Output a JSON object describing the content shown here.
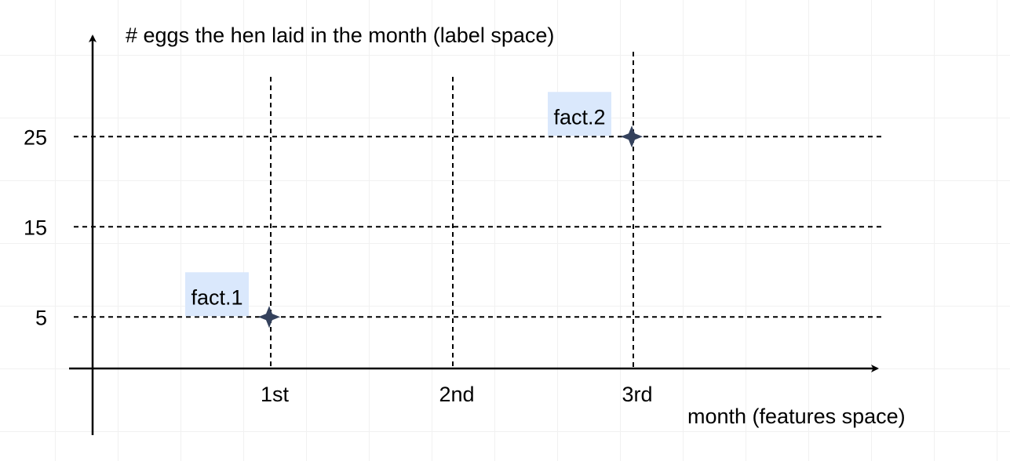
{
  "chart_data": {
    "type": "scatter",
    "ylabel": "# eggs the hen laid in the month (label space)",
    "xlabel": "month (features space)",
    "x_categories": [
      "1st",
      "2nd",
      "3rd"
    ],
    "y_ticks": [
      5,
      15,
      25
    ],
    "grid": "dashed",
    "points": [
      {
        "label": "fact.1",
        "x": "1st",
        "y": 5
      },
      {
        "label": "fact.2",
        "x": "3rd",
        "y": 25
      }
    ],
    "colors": {
      "point": "#34415c",
      "label_highlight": "#dae8fc",
      "axis": "#000000",
      "grid": "#000000"
    }
  }
}
